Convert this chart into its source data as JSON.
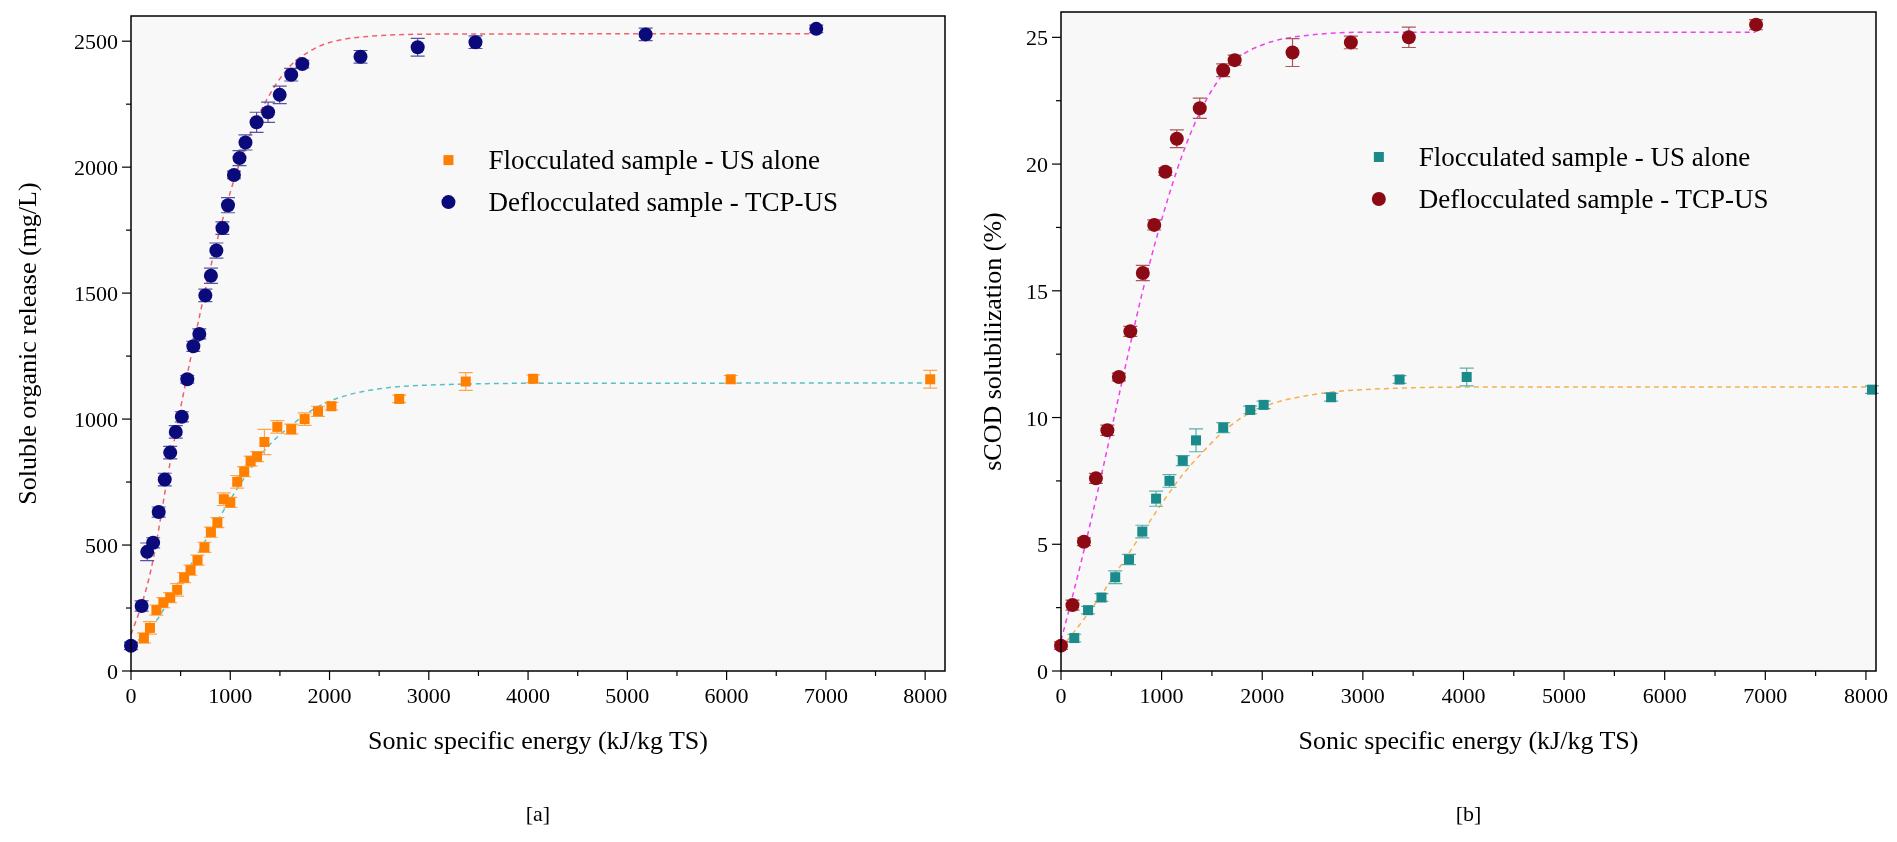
{
  "chart_data": [
    {
      "type": "scatter",
      "xlabel": "Sonic specific energy (kJ/kg TS)",
      "ylabel": "Soluble organic release (mg/L)",
      "annotations": [
        "[a]"
      ],
      "xlim": [
        0,
        8200
      ],
      "ylim": [
        0,
        2600
      ],
      "xticks": [
        0,
        {
          "value": 500,
          "label": null
        },
        1000,
        {
          "value": 1500,
          "label": null
        },
        2000,
        {
          "value": 2500,
          "label": null
        },
        3000,
        {
          "value": 3500,
          "label": null
        },
        4000,
        {
          "value": 4500,
          "label": null
        },
        5000,
        {
          "value": 5500,
          "label": null
        },
        6000,
        {
          "value": 6500,
          "label": null
        },
        7000,
        {
          "value": 7500,
          "label": null
        },
        8000
      ],
      "yticks": [
        0,
        {
          "value": 250,
          "label": null
        },
        500,
        {
          "value": 750,
          "label": null
        },
        1000,
        {
          "value": 1250,
          "label": null
        },
        1500,
        {
          "value": 1750,
          "label": null
        },
        2000,
        {
          "value": 2250,
          "label": null
        },
        2500
      ],
      "grid": false,
      "legend": "right",
      "series": [
        {
          "type": "line",
          "color": "#f06070",
          "marker": "none",
          "line_style": "dashed",
          "x": [
            0,
            200,
            400,
            600,
            800,
            1000,
            1200,
            1400,
            1600,
            1800,
            2000,
            2500,
            3000,
            6900
          ],
          "values": [
            145,
            400,
            840,
            1240,
            1600,
            1900,
            2130,
            2290,
            2400,
            2460,
            2495,
            2522,
            2528,
            2530
          ]
        },
        {
          "type": "line",
          "color": "#5bc0c0",
          "marker": "none",
          "line_style": "dashed",
          "x": [
            0,
            200,
            400,
            600,
            800,
            1000,
            1200,
            1400,
            1600,
            1800,
            2000,
            2500,
            3000,
            4000,
            8050
          ],
          "values": [
            100,
            170,
            290,
            420,
            550,
            680,
            800,
            900,
            970,
            1030,
            1070,
            1120,
            1135,
            1142,
            1143
          ]
        },
        {
          "name": "Flocculated sample - US alone",
          "color": "#ff8000",
          "marker": "square",
          "x": [
            130,
            191,
            256,
            326,
            395,
            465,
            535,
            600,
            670,
            740,
            805,
            870,
            935,
            1000,
            1070,
            1140,
            1205,
            1270,
            1344,
            1474,
            1614,
            1749,
            1884,
            2019,
            2702,
            3372,
            4051,
            6041,
            8051
          ],
          "values": [
            131,
            171,
            242,
            271,
            291,
            322,
            371,
            400,
            440,
            491,
            551,
            589,
            682,
            669,
            751,
            791,
            833,
            851,
            909,
            969,
            960,
            1000,
            1031,
            1051,
            1080,
            1149,
            1160,
            1158,
            1158
          ],
          "errors": [
            20,
            25,
            20,
            20,
            20,
            25,
            20,
            20,
            20,
            20,
            20,
            20,
            25,
            20,
            25,
            20,
            20,
            20,
            50,
            25,
            20,
            25,
            20,
            15,
            15,
            35,
            15,
            15,
            35
          ]
        },
        {
          "name": "Deflocculated sample - TCP-US",
          "color": "#0a0a7a",
          "marker": "circle",
          "x": [
            0,
            107,
            163,
            223,
            279,
            340,
            395,
            451,
            512,
            567,
            628,
            688,
            749,
            805,
            860,
            921,
            977,
            1037,
            1093,
            1153,
            1265,
            1381,
            1498,
            1614,
            1726,
            2312,
            2888,
            3470,
            5184,
            6903
          ],
          "values": [
            100,
            258,
            473,
            509,
            631,
            760,
            867,
            949,
            1009,
            1158,
            1289,
            1338,
            1491,
            1569,
            1669,
            1758,
            1849,
            1969,
            2036,
            2098,
            2178,
            2218,
            2287,
            2367,
            2409,
            2438,
            2476,
            2496,
            2527,
            2549
          ],
          "errors": [
            15,
            20,
            35,
            20,
            20,
            25,
            25,
            25,
            20,
            15,
            20,
            20,
            25,
            30,
            30,
            25,
            30,
            15,
            30,
            30,
            40,
            40,
            35,
            25,
            15,
            25,
            35,
            25,
            25,
            15
          ]
        }
      ]
    },
    {
      "type": "scatter",
      "xlabel": "Sonic specific energy (kJ/kg TS)",
      "ylabel": "sCOD solubilization (%)",
      "annotations": [
        "[b]"
      ],
      "xlim": [
        0,
        8100
      ],
      "ylim": [
        0,
        26
      ],
      "xticks": [
        0,
        {
          "value": 500,
          "label": null
        },
        1000,
        {
          "value": 1500,
          "label": null
        },
        2000,
        {
          "value": 2500,
          "label": null
        },
        3000,
        {
          "value": 3500,
          "label": null
        },
        4000,
        {
          "value": 4500,
          "label": null
        },
        5000,
        {
          "value": 5500,
          "label": null
        },
        6000,
        {
          "value": 6500,
          "label": null
        },
        7000,
        {
          "value": 7500,
          "label": null
        },
        8000
      ],
      "yticks": [
        0,
        {
          "value": 2.5,
          "label": null
        },
        5,
        {
          "value": 7.5,
          "label": null
        },
        10,
        {
          "value": 12.5,
          "label": null
        },
        15,
        {
          "value": 17.5,
          "label": null
        },
        20,
        {
          "value": 22.5,
          "label": null
        },
        25
      ],
      "grid": false,
      "legend": "right",
      "series": [
        {
          "type": "line",
          "color": "#f040f0",
          "marker": "none",
          "line_style": "dashed",
          "x": [
            0,
            200,
            400,
            600,
            800,
            1000,
            1200,
            1400,
            1600,
            1800,
            2000,
            2500,
            3000,
            6900
          ],
          "values": [
            1.2,
            4.3,
            7.7,
            11.3,
            14.8,
            17.8,
            20.3,
            22.2,
            23.5,
            24.3,
            24.7,
            25.1,
            25.2,
            25.2
          ]
        },
        {
          "type": "line",
          "color": "#f5b050",
          "marker": "none",
          "line_style": "dashed",
          "x": [
            0,
            200,
            400,
            600,
            800,
            1000,
            1200,
            1400,
            1600,
            1800,
            2000,
            2500,
            3000,
            4000,
            8050
          ],
          "values": [
            0.9,
            1.9,
            3.0,
            4.2,
            5.4,
            6.6,
            7.7,
            8.6,
            9.4,
            10.0,
            10.4,
            10.9,
            11.1,
            11.2,
            11.2
          ]
        },
        {
          "name": "Flocculated sample - US alone",
          "color": "#1a8a8a",
          "marker": "square",
          "x": [
            132,
            269,
            402,
            539,
            676,
            808,
            945,
            1078,
            1210,
            1342,
            1612,
            1881,
            2014,
            2685,
            3365,
            4032,
            8060
          ],
          "values": [
            1.3,
            2.4,
            2.9,
            3.7,
            4.4,
            5.5,
            6.8,
            7.5,
            8.3,
            9.1,
            9.6,
            10.3,
            10.5,
            10.8,
            11.5,
            11.6,
            11.1
          ],
          "errors": [
            0.15,
            0.15,
            0.15,
            0.25,
            0.2,
            0.25,
            0.3,
            0.25,
            0.2,
            0.45,
            0.2,
            0.15,
            0.15,
            0.15,
            0.15,
            0.35,
            0.15
          ]
        },
        {
          "name": "Deflocculated sample - TCP-US",
          "color": "#8b0a14",
          "marker": "circle",
          "x": [
            0,
            114,
            228,
            347,
            461,
            575,
            689,
            813,
            927,
            1037,
            1151,
            1379,
            1612,
            1726,
            2301,
            2881,
            3457,
            6908
          ],
          "values": [
            1.0,
            2.6,
            5.1,
            7.6,
            9.5,
            11.6,
            13.4,
            15.7,
            17.6,
            19.7,
            21.0,
            22.2,
            23.7,
            24.1,
            24.4,
            24.8,
            25.0,
            25.5
          ],
          "errors": [
            0.15,
            0.2,
            0.15,
            0.2,
            0.2,
            0.15,
            0.2,
            0.3,
            0.2,
            0.15,
            0.35,
            0.4,
            0.25,
            0.2,
            0.55,
            0.25,
            0.4,
            0.2
          ]
        }
      ]
    }
  ]
}
